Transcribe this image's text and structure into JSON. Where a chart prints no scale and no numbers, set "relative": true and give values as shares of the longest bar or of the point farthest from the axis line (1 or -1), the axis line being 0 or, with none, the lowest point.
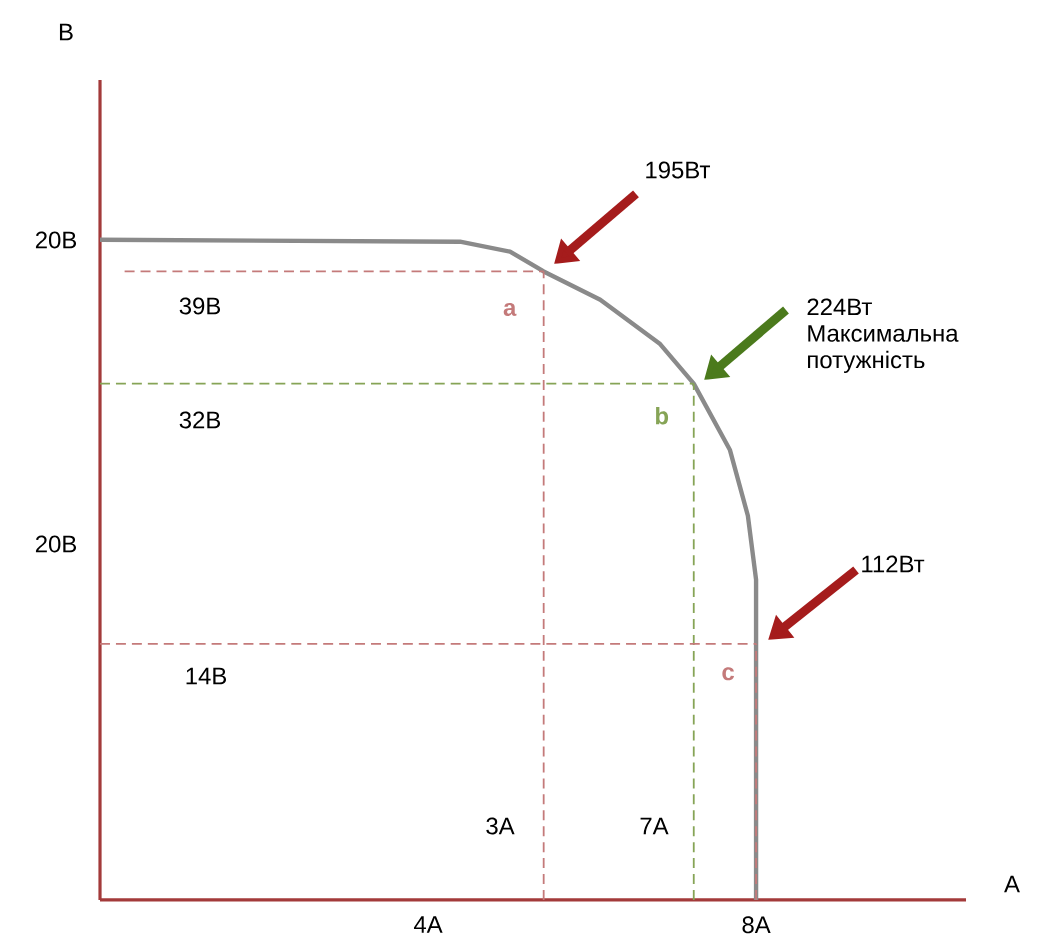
{
  "chart_data": {
    "type": "line",
    "relative": true,
    "xlabel": "А",
    "x": [
      0,
      4.39,
      5.0,
      5.41,
      6.1,
      6.83,
      7.24,
      7.68,
      7.9,
      8.0,
      8.0
    ],
    "series": [
      {
        "color": "#8a8a8a",
        "values": [
          1.0,
          0.997,
          0.982,
          0.952,
          0.909,
          0.842,
          0.782,
          0.682,
          0.582,
          0.485,
          0
        ]
      }
    ],
    "xlim": [
      0,
      10.56
    ],
    "xticks": [
      {
        "value": 4,
        "label": "4А"
      },
      {
        "value": 8,
        "label": "8А"
      }
    ],
    "ref_lines": [
      {
        "axis": "x",
        "value": 5.41,
        "label": "a",
        "color": "#c47a7a",
        "line_style": "dashed"
      },
      {
        "axis": "x",
        "value": 7.24,
        "label": "b",
        "color": "#86a456",
        "line_style": "dashed"
      },
      {
        "axis": "x",
        "value": 8.0,
        "label": "c",
        "color": "#c47a7a",
        "line_style": "dashed"
      },
      {
        "axis": "y",
        "value": 0.952,
        "color": "#c47a7a",
        "line_style": "dashed"
      },
      {
        "axis": "y",
        "value": 0.782,
        "color": "#86a456",
        "line_style": "dashed"
      },
      {
        "axis": "y",
        "value": 0.388,
        "color": "#c47a7a",
        "line_style": "dashed"
      }
    ],
    "annotations": [
      "20В",
      "39В",
      "32В",
      "20В",
      "14В",
      "3А",
      "7А",
      "195Вт",
      "224Вт Максимальна потужність",
      "112Вт",
      "В"
    ],
    "marker": "none",
    "line_style": "solid",
    "grid": false
  }
}
